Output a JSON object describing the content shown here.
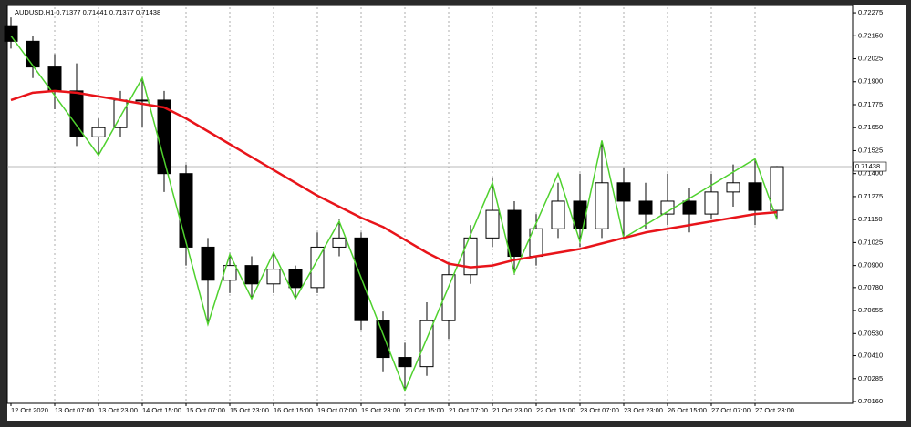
{
  "chart_data": {
    "type": "candlestick",
    "title": "AUDUSD,H1  0.71377 0.71441 0.71377 0.71438",
    "categories": [
      "12 Oct 2020",
      null,
      "13 Oct 07:00",
      null,
      "13 Oct 23:00",
      null,
      "14 Oct 15:00",
      null,
      "15 Oct 07:00",
      null,
      "15 Oct 23:00",
      null,
      "16 Oct 15:00",
      null,
      "19 Oct 07:00",
      null,
      "19 Oct 23:00",
      null,
      "20 Oct 15:00",
      null,
      "21 Oct 07:00",
      null,
      "21 Oct 23:00",
      null,
      "22 Oct 15:00",
      null,
      "23 Oct 07:00",
      null,
      "23 Oct 23:00",
      null,
      "26 Oct 15:00",
      null,
      "27 Oct 07:00",
      null,
      "27 Oct 23:00",
      null
    ],
    "candles": {
      "open": [
        0.722,
        0.7212,
        0.7198,
        0.7185,
        0.716,
        0.7165,
        0.718,
        0.718,
        0.714,
        0.71,
        0.7082,
        0.709,
        0.708,
        0.7088,
        0.7078,
        0.71,
        0.7105,
        0.706,
        0.704,
        0.7035,
        0.706,
        0.7085,
        0.7105,
        0.712,
        0.7095,
        0.711,
        0.7125,
        0.711,
        0.7135,
        0.7125,
        0.7118,
        0.7125,
        0.7118,
        0.713,
        0.7135,
        0.712
      ],
      "high": [
        0.7225,
        0.7215,
        0.7205,
        0.72,
        0.717,
        0.7185,
        0.7192,
        0.7185,
        0.7145,
        0.7105,
        0.7097,
        0.7095,
        0.7097,
        0.709,
        0.7108,
        0.7115,
        0.7108,
        0.7065,
        0.7048,
        0.707,
        0.7092,
        0.7112,
        0.7138,
        0.7125,
        0.7118,
        0.7135,
        0.714,
        0.7158,
        0.7143,
        0.7135,
        0.714,
        0.7132,
        0.714,
        0.7145,
        0.7148,
        0.71441
      ],
      "low": [
        0.7208,
        0.7192,
        0.7175,
        0.7155,
        0.715,
        0.716,
        0.7165,
        0.713,
        0.709,
        0.7058,
        0.7075,
        0.7072,
        0.7075,
        0.7072,
        0.7075,
        0.7095,
        0.7055,
        0.7032,
        0.7022,
        0.703,
        0.705,
        0.708,
        0.71,
        0.7085,
        0.709,
        0.7105,
        0.71,
        0.7105,
        0.7105,
        0.711,
        0.7112,
        0.7108,
        0.7115,
        0.7122,
        0.7112,
        0.7115
      ],
      "close": [
        0.7212,
        0.7198,
        0.7185,
        0.716,
        0.7165,
        0.718,
        0.718,
        0.714,
        0.71,
        0.7082,
        0.709,
        0.708,
        0.7088,
        0.7078,
        0.71,
        0.7105,
        0.706,
        0.704,
        0.7035,
        0.706,
        0.7085,
        0.7105,
        0.712,
        0.7095,
        0.711,
        0.7125,
        0.711,
        0.7135,
        0.7125,
        0.7118,
        0.7125,
        0.7118,
        0.713,
        0.7135,
        0.712,
        0.71438
      ],
      "up_color": "#ffffff",
      "down_color": "#000000",
      "edge_color": "#000000"
    },
    "moving_average": {
      "color": "#e8141a",
      "values": [
        0.718,
        0.7184,
        0.7185,
        0.7184,
        0.7182,
        0.718,
        0.7178,
        0.7176,
        0.717,
        0.7163,
        0.7156,
        0.7149,
        0.7142,
        0.7135,
        0.7128,
        0.7122,
        0.7116,
        0.7111,
        0.7104,
        0.7097,
        0.7091,
        0.7089,
        0.709,
        0.7093,
        0.7095,
        0.7097,
        0.7099,
        0.7102,
        0.7105,
        0.7108,
        0.711,
        0.7112,
        0.7114,
        0.7116,
        0.7118,
        0.7119
      ]
    },
    "zigzag": {
      "color": "#4fd12e",
      "x": [
        0,
        4,
        6,
        9,
        10,
        11,
        12,
        13,
        15,
        18,
        22,
        23,
        25,
        26,
        27,
        28,
        34,
        35
      ],
      "values": [
        0.7215,
        0.715,
        0.7192,
        0.7058,
        0.7096,
        0.7072,
        0.7097,
        0.7072,
        0.7114,
        0.7022,
        0.7135,
        0.7086,
        0.714,
        0.7103,
        0.7158,
        0.7105,
        0.7148,
        0.7115
      ]
    },
    "current_price": {
      "value": 0.71438,
      "label": "0.71438"
    },
    "ylim": [
      0.7016,
      0.72305
    ],
    "yticks": [
      {
        "value": 0.72275,
        "label": "0.72275"
      },
      {
        "value": 0.7215,
        "label": "0.72150"
      },
      {
        "value": 0.72025,
        "label": "0.72025"
      },
      {
        "value": 0.719,
        "label": "0.71900"
      },
      {
        "value": 0.71775,
        "label": "0.71775"
      },
      {
        "value": 0.7165,
        "label": "0.71650"
      },
      {
        "value": 0.71525,
        "label": "0.71525"
      },
      {
        "value": 0.714,
        "label": "0.71400"
      },
      {
        "value": 0.71275,
        "label": "0.71275"
      },
      {
        "value": 0.7115,
        "label": "0.71150"
      },
      {
        "value": 0.71025,
        "label": "0.71025"
      },
      {
        "value": 0.709,
        "label": "0.70900"
      },
      {
        "value": 0.7078,
        "label": "0.70780"
      },
      {
        "value": 0.70655,
        "label": "0.70655"
      },
      {
        "value": 0.7053,
        "label": "0.70530"
      },
      {
        "value": 0.7041,
        "label": "0.70410"
      },
      {
        "value": 0.70285,
        "label": "0.70285"
      },
      {
        "value": 0.7016,
        "label": "0.70160"
      }
    ],
    "grid": true
  }
}
